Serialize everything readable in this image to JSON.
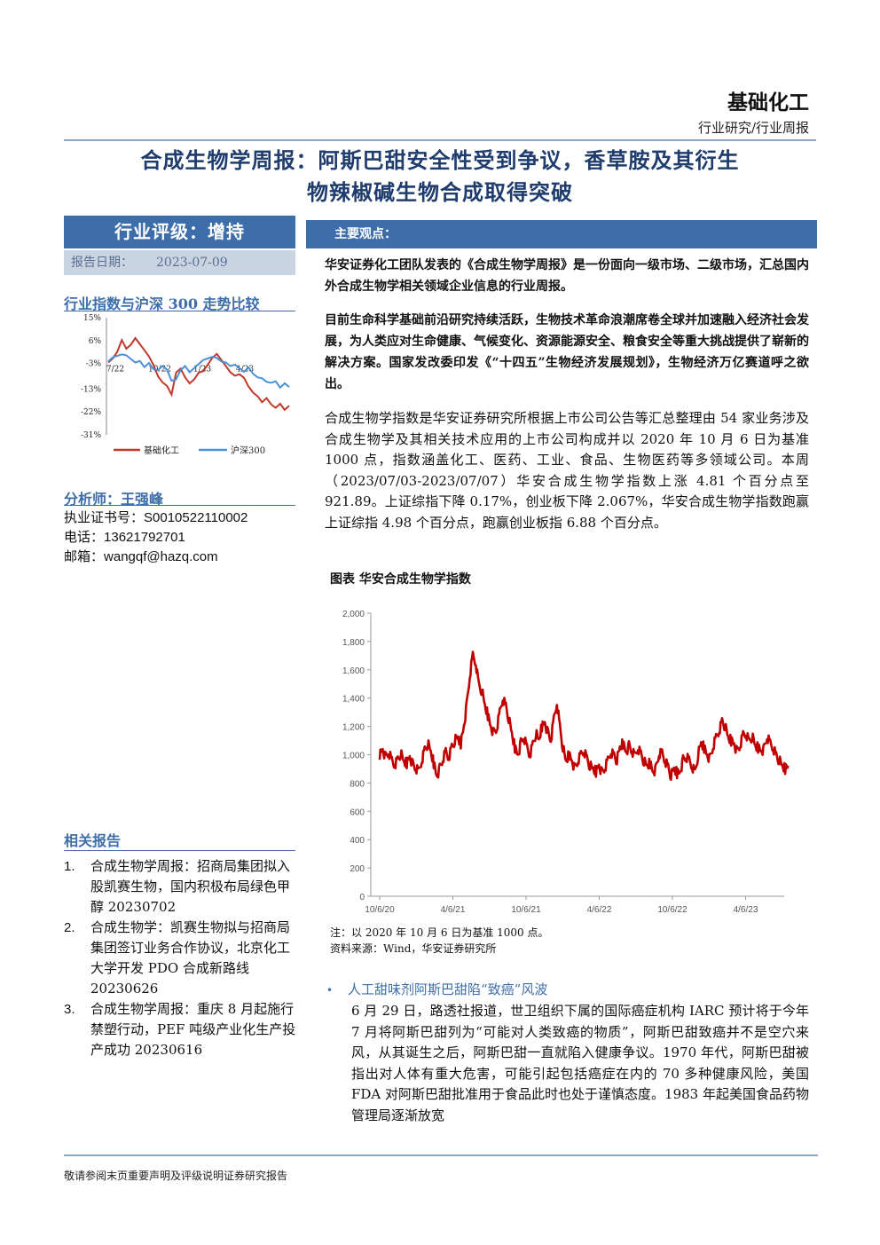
{
  "header": {
    "industry": "基础化工",
    "report_type": "行业研究/行业周报"
  },
  "title": {
    "line1": "合成生物学周报：阿斯巴甜安全性受到争议，香草胺及其衍生",
    "line2": "物辣椒碱生物合成取得突破"
  },
  "rating": {
    "label": "行业评级：增持",
    "date_label": "报告日期：",
    "date_value": "2023-07-09"
  },
  "main_view_label": "主要观点：",
  "index_compare": {
    "title": "行业指数与沪深 300 走势比较",
    "chart_data": {
      "type": "line",
      "yticks": [
        "15%",
        "6%",
        "-3%",
        "-13%",
        "-22%",
        "-31%"
      ],
      "xticks": [
        "7/22",
        "10/22",
        "1/23",
        "4/23"
      ],
      "ylim": [
        -31,
        15
      ],
      "series": [
        {
          "name": "基础化工",
          "color": "#c0392b",
          "values": [
            -3,
            -1,
            2,
            6,
            3,
            4,
            7,
            5,
            2,
            0,
            -4,
            -8,
            -10,
            -12,
            -15,
            -7,
            -5,
            -8,
            -11,
            -9,
            -7,
            -6,
            -3,
            -1,
            1,
            -2,
            -4,
            -6,
            -8,
            -7,
            -9,
            -12,
            -14,
            -16,
            -18,
            -17,
            -19,
            -20,
            -19,
            -21,
            -20
          ]
        },
        {
          "name": "沪深300",
          "color": "#4a90d9",
          "values": [
            -2,
            -1,
            0,
            1,
            0,
            -1,
            -3,
            -2,
            -4,
            -3,
            -5,
            -6,
            -4,
            -5,
            -10,
            -9,
            -6,
            -4,
            -6,
            -5,
            -3,
            -2,
            -1,
            0,
            -1,
            -2,
            -3,
            -4,
            -3,
            -5,
            -6,
            -5,
            -7,
            -8,
            -9,
            -10,
            -11,
            -10,
            -12,
            -11,
            -12
          ]
        }
      ]
    }
  },
  "analyst": {
    "title": "分析师：王强峰",
    "cert_label": "执业证书号：",
    "cert": "S0010522110002",
    "phone_label": "电话：",
    "phone": "13621792701",
    "email_label": "邮箱：",
    "email": "wangqf@hazq.com"
  },
  "related": {
    "title": "相关报告",
    "items": [
      {
        "num": "1.",
        "text": "合成生物学周报：招商局集团拟入股凯赛生物，国内积极布局绿色甲醇 20230702"
      },
      {
        "num": "2.",
        "text": "合成生物学：凯赛生物拟与招商局集团签订业务合作协议，北京化工大学开发 PDO 合成新路线 20230626"
      },
      {
        "num": "3.",
        "text": "合成生物学周报：重庆 8 月起施行禁塑行动，PEF 吨级产业化生产投产成功 20230616"
      }
    ]
  },
  "paragraphs": {
    "p1": "华安证券化工团队发表的《合成生物学周报》是一份面向一级市场、二级市场，汇总国内外合成生物学相关领域企业信息的行业周报。",
    "p2": "目前生命科学基础前沿研究持续活跃，生物技术革命浪潮席卷全球并加速融入经济社会发展，为人类应对生命健康、气候变化、资源能源安全、粮食安全等重大挑战提供了崭新的解决方案。国家发改委印发《“十四五”生物经济发展规划》，生物经济万亿赛道呼之欲出。",
    "p3": "合成生物学指数是华安证券研究所根据上市公司公告等汇总整理由 54 家业务涉及合成生物学及其相关技术应用的上市公司构成并以 2020 年 10 月 6 日为基准 1000 点，指数涵盖化工、医药、工业、食品、生物医药等多领域公司。本周（2023/07/03-2023/07/07）华安合成生物学指数上涨 4.81 个百分点至 921.89。上证综指下降 0.17%，创业板下降 2.067%，华安合成生物学指数跑赢上证综指 4.98 个百分点，跑赢创业板指 6.88 个百分点。"
  },
  "figure": {
    "title": "图表 华安合成生物学指数",
    "chart_data": {
      "type": "line",
      "ylim": [
        0,
        2000
      ],
      "yticks": [
        "2,000",
        "1,800",
        "1,600",
        "1,400",
        "1,200",
        "1,000",
        "800",
        "600",
        "400",
        "200",
        "0"
      ],
      "xticks": [
        "10/6/20",
        "4/6/21",
        "10/6/21",
        "4/6/22",
        "10/6/22",
        "4/6/23"
      ],
      "series": [
        {
          "color": "#c00000",
          "values": [
            1000,
            1040,
            980,
            1010,
            960,
            930,
            970,
            1010,
            950,
            940,
            990,
            930,
            900,
            880,
            960,
            1040,
            1080,
            1020,
            940,
            850,
            900,
            960,
            1020,
            980,
            1060,
            1100,
            1120,
            1080,
            1200,
            1350,
            1550,
            1700,
            1650,
            1500,
            1450,
            1350,
            1280,
            1200,
            1150,
            1180,
            1300,
            1400,
            1350,
            1250,
            1150,
            1050,
            1000,
            1080,
            1120,
            1050,
            1000,
            1080,
            1150,
            1100,
            1200,
            1230,
            1150,
            1100,
            1250,
            1370,
            1200,
            1050,
            950,
            1000,
            960,
            900,
            950,
            1000,
            1030,
            980,
            920,
            900,
            880,
            930,
            870,
            900,
            960,
            1020,
            1000,
            960,
            1050,
            1080,
            1020,
            1060,
            1020,
            990,
            1050,
            1010,
            950,
            920,
            940,
            880,
            900,
            1000,
            1010,
            960,
            920,
            850,
            900,
            870,
            880,
            960,
            980,
            960,
            920,
            880,
            1000,
            1080,
            1050,
            1000,
            970,
            1050,
            1120,
            1170,
            1240,
            1200,
            1120,
            1100,
            1080,
            1020,
            1060,
            1140,
            1150,
            1100,
            1130,
            1060,
            1050,
            1030,
            1040,
            1120,
            1080,
            1050,
            1000,
            960,
            920,
            900,
            921.89
          ]
        }
      ]
    },
    "note1": "注：以 2020 年 10 月 6 日为基准 1000 点。",
    "note2": "资料来源：Wind，华安证券研究所"
  },
  "bullet": {
    "heading": "人工甜味剂阿斯巴甜陷“致癌”风波",
    "body": "6 月 29 日，路透社报道，世卫组织下属的国际癌症机构 IARC 预计将于今年 7 月将阿斯巴甜列为“可能对人类致癌的物质”，阿斯巴甜致癌并不是空穴来风，从其诞生之后，阿斯巴甜一直就陷入健康争议。1970 年代，阿斯巴甜被指出对人体有重大危害，可能引起包括癌症在内的 70 多种健康风险，美国 FDA 对阿斯巴甜批准用于食品此时也处于谨慎态度。1983 年起美国食品药物管理局逐渐放宽"
  },
  "footer": "敬请参阅末页重要声明及评级说明证券研究报告"
}
